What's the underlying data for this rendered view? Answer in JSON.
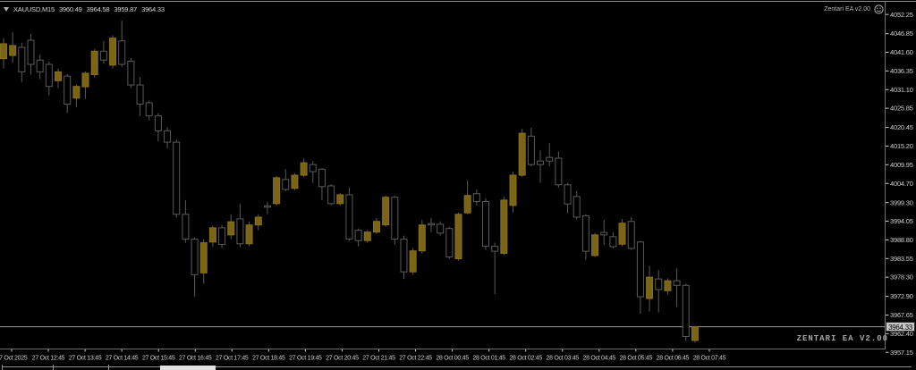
{
  "window": {
    "title": {
      "symbol": "XAUUSD,M15",
      "open": "3960.49",
      "high": "3964.58",
      "low": "3959.87",
      "close": "3964.33"
    }
  },
  "ea_badge": {
    "label": "Zentari EA v2.00",
    "icon": "smiley-icon"
  },
  "watermark": "ZENTARI EA V2.00",
  "price_tag": "3964.33",
  "colors": {
    "background": "#000000",
    "bull": "#7a6416",
    "bull_border": "#8a701c",
    "bear": "#000000",
    "outline": "#5a5a5a",
    "wick": "#5a5a5a",
    "axis_text": "#cfcfcf",
    "border": "#6e6e6e",
    "top_border": "#8c8c8c",
    "bid_line": "#9a9a9a",
    "tag_bg": "#c8c8c8",
    "tag_text": "#000000"
  },
  "chart_data": {
    "type": "candlestick",
    "title": "XAUUSD,M15",
    "symbol": "XAUUSD",
    "timeframe": "M15",
    "current_bar": {
      "open": 3960.49,
      "high": 3964.58,
      "low": 3959.87,
      "close": 3964.33
    },
    "bid_line": 3964.33,
    "grid": false,
    "y_axis": {
      "side": "right",
      "ylim": [
        3956.2,
        4053.3
      ],
      "labels": [
        "4052.25",
        "4046.85",
        "4041.60",
        "4036.35",
        "4031.10",
        "4025.85",
        "4020.45",
        "4015.20",
        "4009.95",
        "4004.70",
        "3999.30",
        "3994.05",
        "3988.80",
        "3983.55",
        "3978.30",
        "3972.90",
        "3967.65",
        "3962.40",
        "3957.15"
      ]
    },
    "x_axis": {
      "labels": [
        "27 Oct 2025",
        "27 Oct 12:45",
        "27 Oct 13:45",
        "27 Oct 14:45",
        "27 Oct 15:45",
        "27 Oct 16:45",
        "27 Oct 17:45",
        "27 Oct 18:45",
        "27 Oct 19:45",
        "27 Oct 20:45",
        "27 Oct 21:45",
        "27 Oct 22:45",
        "28 Oct 00:45",
        "28 Oct 01:45",
        "28 Oct 02:45",
        "28 Oct 03:45",
        "28 Oct 04:45",
        "28 Oct 05:45",
        "28 Oct 06:45",
        "28 Oct 07:45"
      ]
    },
    "candles_ohlc": [
      [
        4039.8,
        4045.6,
        4037.0,
        4044.0
      ],
      [
        4040.7,
        4047.3,
        4038.6,
        4043.5
      ],
      [
        4043.0,
        4044.3,
        4033.2,
        4036.1
      ],
      [
        4045.0,
        4046.8,
        4035.3,
        4038.2
      ],
      [
        4039.4,
        4041.0,
        4034.0,
        4036.1
      ],
      [
        4038.2,
        4039.0,
        4029.5,
        4032.0
      ],
      [
        4033.6,
        4037.0,
        4031.5,
        4036.1
      ],
      [
        4034.9,
        4035.5,
        4024.5,
        4027.0
      ],
      [
        4028.7,
        4032.5,
        4026.2,
        4032.0
      ],
      [
        4031.9,
        4036.2,
        4028.5,
        4035.7
      ],
      [
        4035.3,
        4042.5,
        4034.5,
        4041.9
      ],
      [
        4041.9,
        4044.8,
        4038.5,
        4039.4
      ],
      [
        4038.0,
        4046.4,
        4037.0,
        4045.6
      ],
      [
        4044.8,
        4050.5,
        4037.5,
        4038.2
      ],
      [
        4039.1,
        4040.0,
        4031.5,
        4032.4
      ],
      [
        4032.4,
        4034.5,
        4023.7,
        4027.0
      ],
      [
        4027.4,
        4028.0,
        4022.5,
        4023.7
      ],
      [
        4023.7,
        4024.5,
        4016.5,
        4019.5
      ],
      [
        4019.5,
        4020.5,
        4014.6,
        4016.3
      ],
      [
        4016.3,
        4017.0,
        3995.0,
        3996.0
      ],
      [
        3996.0,
        4000.0,
        3988.0,
        3989.0
      ],
      [
        3989.0,
        3989.5,
        3972.8,
        3979.0
      ],
      [
        3979.5,
        3989.0,
        3976.5,
        3988.0
      ],
      [
        3988.2,
        3992.8,
        3986.8,
        3992.2
      ],
      [
        3992.2,
        3993.0,
        3986.5,
        3987.5
      ],
      [
        3990.2,
        3996.0,
        3989.0,
        3993.9
      ],
      [
        3994.7,
        3998.9,
        3986.7,
        3987.7
      ],
      [
        3987.7,
        3994.0,
        3987.0,
        3993.0
      ],
      [
        3993.0,
        3996.0,
        3991.5,
        3995.2
      ],
      [
        3998.4,
        3999.5,
        3996.0,
        3998.0
      ],
      [
        3999.0,
        4006.8,
        3998.5,
        4006.3
      ],
      [
        4005.8,
        4008.7,
        4002.5,
        4003.0
      ],
      [
        4003.3,
        4007.5,
        4002.8,
        4007.0
      ],
      [
        4007.0,
        4011.7,
        4006.5,
        4010.5
      ],
      [
        4010.0,
        4011.0,
        4004.8,
        4008.0
      ],
      [
        4008.7,
        4009.0,
        4000.0,
        4003.8
      ],
      [
        4004.0,
        4004.5,
        3998.5,
        3999.0
      ],
      [
        3999.0,
        4002.0,
        3998.5,
        4001.5
      ],
      [
        4001.5,
        4003.5,
        3988.5,
        3989.0
      ],
      [
        3991.5,
        3992.0,
        3987.0,
        3988.6
      ],
      [
        3988.6,
        3991.5,
        3988.0,
        3991.0
      ],
      [
        3991.0,
        3995.0,
        3990.5,
        3994.0
      ],
      [
        3993.0,
        4001.3,
        3992.5,
        4000.8
      ],
      [
        4000.8,
        4001.2,
        3987.5,
        3989.0
      ],
      [
        3989.0,
        3990.0,
        3977.8,
        3979.8
      ],
      [
        3979.8,
        3986.5,
        3979.0,
        3985.7
      ],
      [
        3985.7,
        3994.4,
        3985.0,
        3993.0
      ],
      [
        3993.4,
        3995.0,
        3991.0,
        3993.0
      ],
      [
        3993.2,
        3994.0,
        3990.0,
        3990.7
      ],
      [
        3992.0,
        3992.5,
        3983.5,
        3984.0
      ],
      [
        3983.5,
        3996.5,
        3983.0,
        3996.0
      ],
      [
        3996.4,
        4005.5,
        3996.0,
        4001.3
      ],
      [
        4001.8,
        4003.0,
        3998.5,
        3999.6
      ],
      [
        3999.6,
        4000.5,
        3986.0,
        3987.0
      ],
      [
        3987.0,
        3988.0,
        3973.5,
        3985.6
      ],
      [
        3985.0,
        4001.0,
        3984.5,
        4000.0
      ],
      [
        3998.5,
        4008.0,
        3996.5,
        4007.0
      ],
      [
        4007.0,
        4020.0,
        4006.5,
        4018.8
      ],
      [
        4018.0,
        4020.4,
        4009.5,
        4010.0
      ],
      [
        4011.0,
        4014.0,
        4004.8,
        4010.0
      ],
      [
        4012.0,
        4016.0,
        4009.5,
        4011.0
      ],
      [
        4011.8,
        4013.7,
        4003.5,
        4004.3
      ],
      [
        4004.3,
        4004.8,
        3996.4,
        3998.9
      ],
      [
        4001.0,
        4002.6,
        3994.5,
        3995.2
      ],
      [
        3995.6,
        3996.0,
        3983.2,
        3985.6
      ],
      [
        3984.4,
        3990.8,
        3984.0,
        3990.2
      ],
      [
        3990.9,
        3994.4,
        3987.3,
        3990.2
      ],
      [
        3989.7,
        3991.0,
        3986.4,
        3986.9
      ],
      [
        3987.6,
        3994.7,
        3987.0,
        3993.5
      ],
      [
        3994.0,
        3995.2,
        3986.0,
        3986.4
      ],
      [
        3988.2,
        3988.5,
        3968.0,
        3972.8
      ],
      [
        3972.3,
        3981.5,
        3968.6,
        3978.3
      ],
      [
        3977.8,
        3980.3,
        3968.4,
        3974.8
      ],
      [
        3974.5,
        3978.0,
        3973.5,
        3977.3
      ],
      [
        3977.3,
        3980.8,
        3969.9,
        3976.0
      ],
      [
        3976.0,
        3976.5,
        3960.3,
        3961.6
      ],
      [
        3960.49,
        3964.58,
        3959.87,
        3964.33
      ]
    ]
  }
}
